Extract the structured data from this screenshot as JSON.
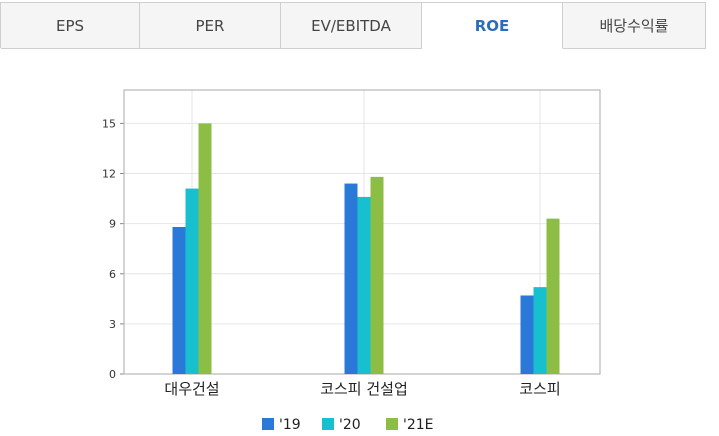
{
  "tabs": [
    {
      "label": "EPS",
      "active": false
    },
    {
      "label": "PER",
      "active": false
    },
    {
      "label": "EV/EBITDA",
      "active": false
    },
    {
      "label": "ROE",
      "active": true
    },
    {
      "label": "배당수익률",
      "active": false
    }
  ],
  "colors": {
    "series_19": "#2a78d8",
    "series_20": "#18bfcf",
    "series_21E": "#8cbd45",
    "active_tab_text": "#2a6ebb"
  },
  "chart_data": {
    "type": "bar",
    "categories": [
      "대우건설",
      "코스피 건설업",
      "코스피"
    ],
    "series": [
      {
        "name": "'19",
        "values": [
          8.8,
          11.4,
          4.7
        ]
      },
      {
        "name": "'20",
        "values": [
          11.1,
          10.6,
          5.2
        ]
      },
      {
        "name": "'21E",
        "values": [
          15.0,
          11.8,
          9.3
        ]
      }
    ],
    "yticks": [
      "0",
      "3",
      "6",
      "9",
      "12",
      "15"
    ],
    "ylim": [
      0,
      17
    ],
    "grid": true,
    "legend_position": "bottom-center"
  }
}
